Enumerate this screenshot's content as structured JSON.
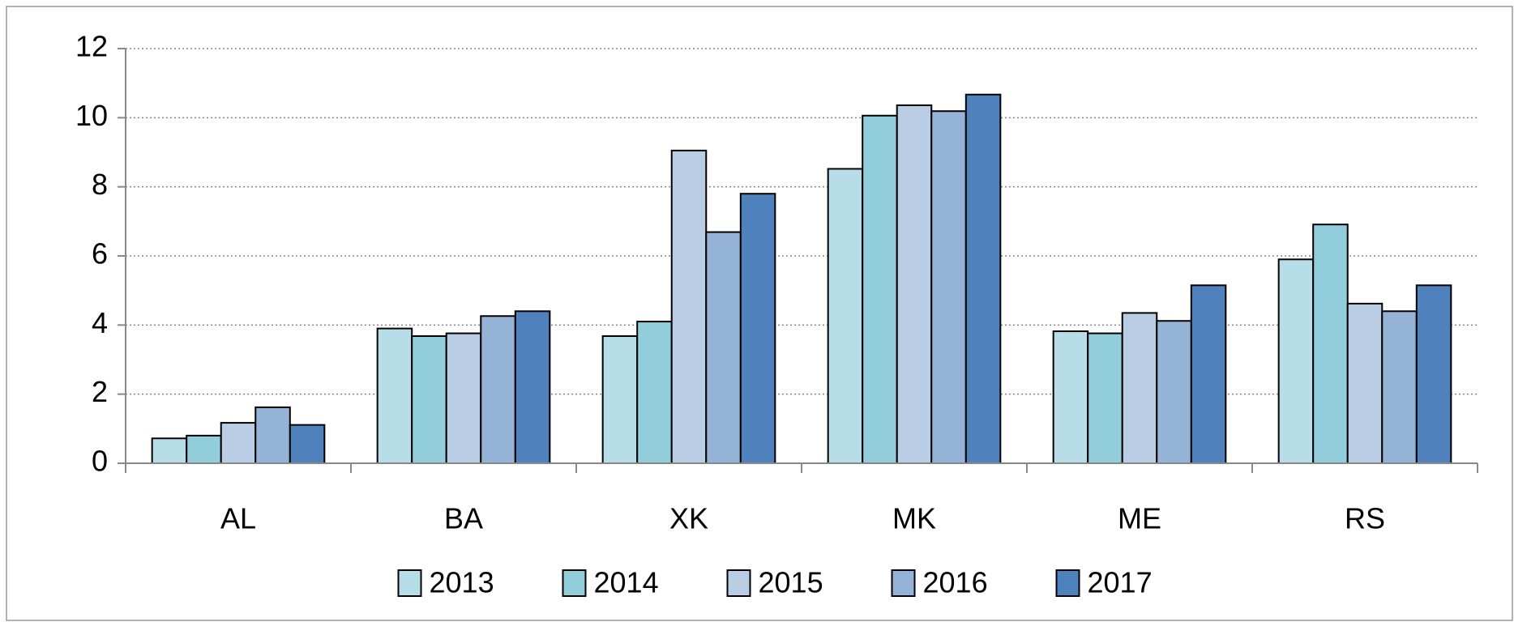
{
  "chart_data": {
    "type": "bar",
    "categories": [
      "AL",
      "BA",
      "XK",
      "MK",
      "ME",
      "RS"
    ],
    "series": [
      {
        "name": "2013",
        "color": "#b7dde8",
        "values": [
          0.72,
          3.9,
          3.68,
          8.52,
          3.82,
          5.9
        ]
      },
      {
        "name": "2014",
        "color": "#92cddc",
        "values": [
          0.8,
          3.68,
          4.1,
          10.06,
          3.76,
          6.91
        ]
      },
      {
        "name": "2015",
        "color": "#b9cde5",
        "values": [
          1.17,
          3.76,
          9.05,
          10.36,
          4.35,
          4.62
        ]
      },
      {
        "name": "2016",
        "color": "#95b3d7",
        "values": [
          1.62,
          4.26,
          6.69,
          10.19,
          4.12,
          4.4
        ]
      },
      {
        "name": "2017",
        "color": "#4f81bd",
        "values": [
          1.11,
          4.4,
          7.8,
          10.67,
          5.15,
          5.15
        ]
      }
    ],
    "ylim": [
      0,
      12
    ],
    "yticks": [
      0,
      2,
      4,
      6,
      8,
      10,
      12
    ],
    "grid": true,
    "legend": "bottom"
  }
}
